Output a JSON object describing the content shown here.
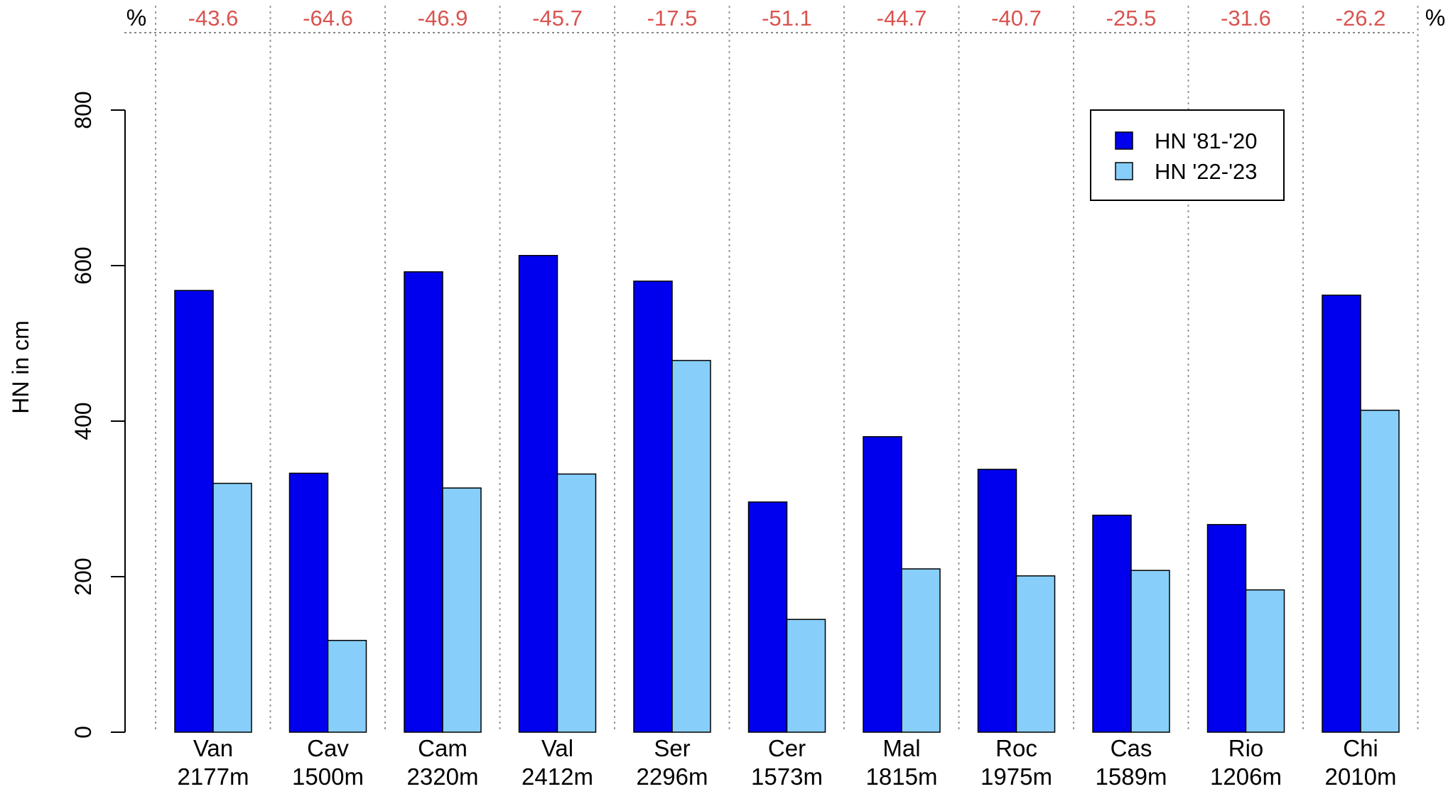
{
  "chart_data": {
    "type": "bar",
    "ylabel": "HN in cm",
    "ylim": [
      0,
      800
    ],
    "yticks": [
      0,
      200,
      400,
      600,
      800
    ],
    "categories": [
      "Van",
      "Cav",
      "Cam",
      "Val",
      "Ser",
      "Cer",
      "Mal",
      "Roc",
      "Cas",
      "Rio",
      "Chi"
    ],
    "elevations": [
      "2177m",
      "1500m",
      "2320m",
      "2412m",
      "2296m",
      "1573m",
      "1815m",
      "1975m",
      "1589m",
      "1206m",
      "2010m"
    ],
    "series": [
      {
        "name": "HN '81-'20",
        "color": "#0000ee",
        "values": [
          568,
          333,
          592,
          613,
          580,
          296,
          380,
          338,
          279,
          267,
          562
        ]
      },
      {
        "name": "HN '22-'23",
        "color": "#87cefa",
        "values": [
          320,
          118,
          314,
          332,
          478,
          145,
          210,
          201,
          208,
          183,
          414
        ]
      }
    ],
    "percent_label": "%",
    "percent_changes": [
      "-43.6",
      "-64.6",
      "-46.9",
      "-45.7",
      "-17.5",
      "-51.1",
      "-44.7",
      "-40.7",
      "-25.5",
      "-31.6",
      "-26.2"
    ],
    "percent_color": "#d9534f",
    "legend_position": "top-right",
    "grid": "dotted vertical separators"
  }
}
